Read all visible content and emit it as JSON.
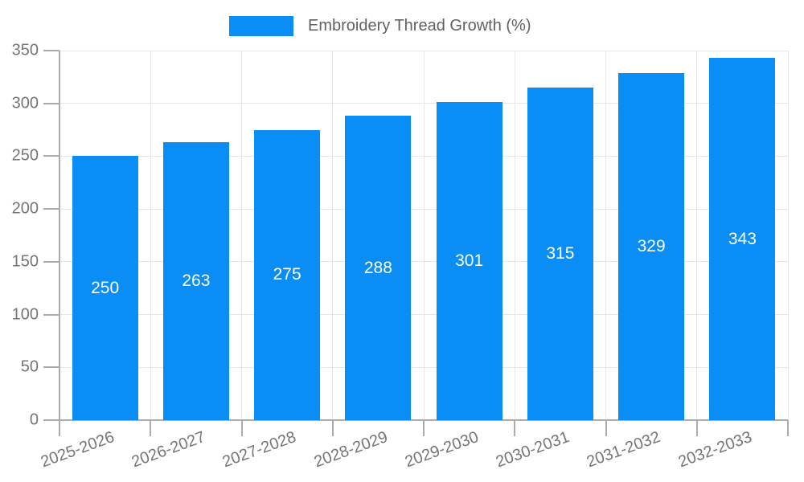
{
  "legend": {
    "label": "Embroidery Thread Growth (%)"
  },
  "chart_data": {
    "type": "bar",
    "title": "Embroidery Thread Growth (%)",
    "categories": [
      "2025-2026",
      "2026-2027",
      "2027-2028",
      "2028-2029",
      "2029-2030",
      "2030-2031",
      "2031-2032",
      "2032-2033"
    ],
    "values": [
      250,
      263,
      275,
      288,
      301,
      315,
      329,
      343
    ],
    "value_labels": [
      "250",
      "263",
      "275",
      "288",
      "301",
      "315",
      "329",
      "343"
    ],
    "xlabel": "",
    "ylabel": "",
    "ylim": [
      0,
      350
    ],
    "yticks": [
      0,
      50,
      100,
      150,
      200,
      250,
      300,
      350
    ],
    "ytick_labels": [
      "0",
      "50",
      "100",
      "150",
      "200",
      "250",
      "300",
      "350"
    ],
    "grid": true,
    "legend_position": "top",
    "bar_color": "#0A8EF5",
    "value_label_color": "#FFFFFF",
    "axis_color": "#ABABAB",
    "grid_color": "#E6E6E6",
    "tick_label_color": "#757575",
    "legend_text_color": "#616161"
  }
}
